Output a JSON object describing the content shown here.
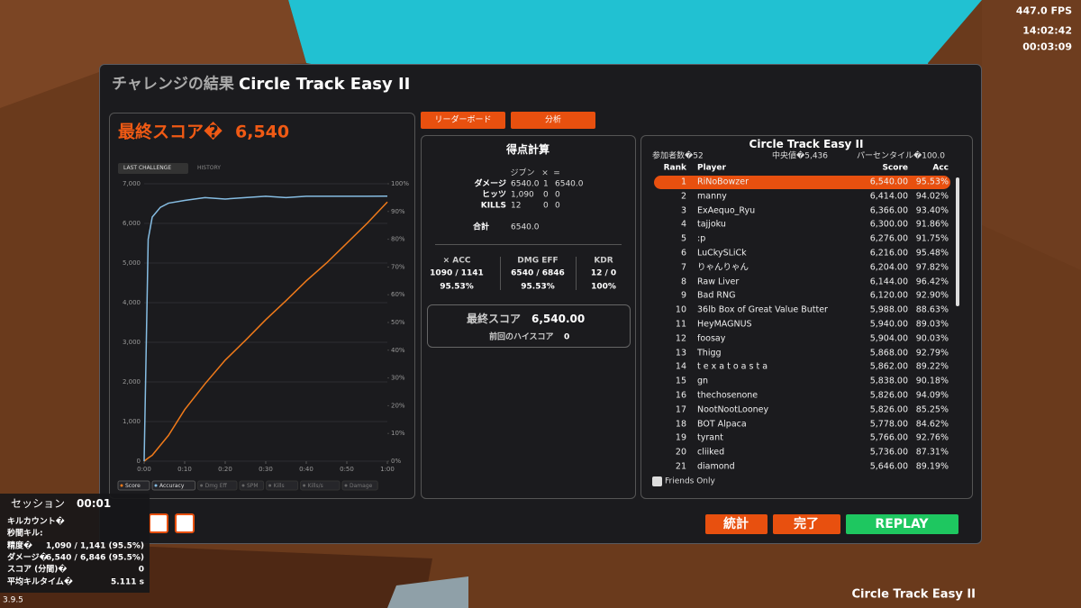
{
  "hud": {
    "fps": "447.0 FPS",
    "clock": "14:02:42",
    "timer": "00:03:09"
  },
  "window": {
    "title_jp": "チャレンジの結果",
    "title": "Circle Track Easy II"
  },
  "final_score": {
    "label": "最終スコア�",
    "value": "6,540"
  },
  "tabs": [
    "LAST CHALLENGE",
    "HISTORY"
  ],
  "chart_data": {
    "type": "line",
    "x": [
      0,
      1,
      2,
      4,
      6,
      10,
      15,
      20,
      25,
      30,
      35,
      40,
      45,
      50,
      55,
      60
    ],
    "xlim": [
      0,
      60
    ],
    "xticks": [
      {
        "value": 0,
        "label": "0:00"
      },
      {
        "value": 10,
        "label": "0:10"
      },
      {
        "value": 20,
        "label": "0:20"
      },
      {
        "value": 30,
        "label": "0:30"
      },
      {
        "value": 40,
        "label": "0:40"
      },
      {
        "value": 50,
        "label": "0:50"
      },
      {
        "value": 60,
        "label": "1:00"
      }
    ],
    "ylim": [
      0,
      7000
    ],
    "yticks": [
      0,
      {
        "value": 1000,
        "label": "1,000"
      },
      {
        "value": 2000,
        "label": "2,000"
      },
      {
        "value": 3000,
        "label": "3,000"
      },
      {
        "value": 4000,
        "label": "4,000"
      },
      {
        "value": 5000,
        "label": "5,000"
      },
      {
        "value": 6000,
        "label": "6,000"
      },
      {
        "value": 7000,
        "label": "7,000"
      }
    ],
    "y2lim": [
      0,
      100
    ],
    "y2ticks": [
      {
        "value": 0,
        "label": "0%"
      },
      {
        "value": 10,
        "label": "10%"
      },
      {
        "value": 20,
        "label": "20%"
      },
      {
        "value": 30,
        "label": "30%"
      },
      {
        "value": 40,
        "label": "40%"
      },
      {
        "value": 50,
        "label": "50%"
      },
      {
        "value": 60,
        "label": "60%"
      },
      {
        "value": 70,
        "label": "70%"
      },
      {
        "value": 80,
        "label": "80%"
      },
      {
        "value": 90,
        "label": "90%"
      },
      {
        "value": 100,
        "label": "100%"
      }
    ],
    "series": [
      {
        "name": "Score",
        "color": "#f07a1a",
        "values": [
          0,
          80,
          150,
          400,
          650,
          1300,
          1950,
          2550,
          3050,
          3570,
          4050,
          4550,
          5000,
          5500,
          6000,
          6540
        ]
      },
      {
        "name": "Accuracy",
        "color": "#86bde3",
        "axis": "y2",
        "values": [
          0,
          80,
          88,
          91.5,
          93,
          94,
          95,
          94.5,
          95,
          95.5,
          95,
          95.5,
          95.5,
          95.5,
          95.5,
          95.53
        ]
      }
    ],
    "legend_inactive": [
      "Dmg Eff",
      "SPM",
      "Kills",
      "Kills/s",
      "Damage"
    ],
    "grid": true
  },
  "buttons": {
    "leaderboard": "リーダーボード",
    "analysis": "分析",
    "stats": "統計",
    "done": "完了",
    "replay": "REPLAY"
  },
  "score_calc": {
    "title": "得点計算",
    "header": [
      "ジブン",
      "×",
      "="
    ],
    "rows": [
      [
        "ダメージ",
        "6540.0",
        "1",
        "6540.0"
      ],
      [
        "ヒッツ",
        "1,090",
        "0",
        "0"
      ],
      [
        "KILLS",
        "12",
        "0",
        "0"
      ]
    ],
    "total": [
      "合計",
      "6540.0"
    ],
    "stats": [
      [
        "× ACC",
        "1090 / 1141",
        "95.53%"
      ],
      [
        "DMG EFF",
        "6540 / 6846",
        "95.53%"
      ],
      [
        "KDR",
        "12 / 0",
        "100%"
      ]
    ],
    "final_label": "最終スコア",
    "final_value": "6,540.00",
    "prev_label": "前回のハイスコア",
    "prev_value": "0"
  },
  "leaderboard": {
    "title": "Circle Track Easy II",
    "participants": "参加者数�52",
    "median": "中央値�5,436",
    "percentile": "パーセンタイル�100.0",
    "columns": [
      "Rank",
      "Player",
      "Score",
      "Acc"
    ],
    "rows": [
      [
        "1",
        "RiNoBowzer",
        "6,540.00",
        "95.53%"
      ],
      [
        "2",
        "manny",
        "6,414.00",
        "94.02%"
      ],
      [
        "3",
        "ExAequo_Ryu",
        "6,366.00",
        "93.40%"
      ],
      [
        "4",
        "tajjoku",
        "6,300.00",
        "91.86%"
      ],
      [
        "5",
        ":p",
        "6,276.00",
        "91.75%"
      ],
      [
        "6",
        "LuCkySLiCk",
        "6,216.00",
        "95.48%"
      ],
      [
        "7",
        "りゃんりゃん",
        "6,204.00",
        "97.82%"
      ],
      [
        "8",
        "Raw Liver",
        "6,144.00",
        "96.42%"
      ],
      [
        "9",
        "Bad RNG",
        "6,120.00",
        "92.90%"
      ],
      [
        "10",
        "36lb Box of Great Value Butter",
        "5,988.00",
        "88.63%"
      ],
      [
        "11",
        "HeyMAGNUS",
        "5,940.00",
        "89.03%"
      ],
      [
        "12",
        "foosay",
        "5,904.00",
        "90.03%"
      ],
      [
        "13",
        "Thigg",
        "5,868.00",
        "92.79%"
      ],
      [
        "14",
        "t e x a t o a s t a",
        "5,862.00",
        "89.22%"
      ],
      [
        "15",
        "gn",
        "5,838.00",
        "90.18%"
      ],
      [
        "16",
        "thechosenone",
        "5,826.00",
        "94.09%"
      ],
      [
        "17",
        "NootNootLooney",
        "5,826.00",
        "85.25%"
      ],
      [
        "18",
        "BOT Alpaca",
        "5,778.00",
        "84.62%"
      ],
      [
        "19",
        "tyrant",
        "5,766.00",
        "92.76%"
      ],
      [
        "20",
        "cliiked",
        "5,736.00",
        "87.31%"
      ],
      [
        "21",
        "diamond",
        "5,646.00",
        "89.19%"
      ]
    ],
    "friends_only": "Friends Only"
  },
  "session": {
    "title": "セッション",
    "time": "00:01",
    "rows": [
      [
        "キルカウント�"
      ],
      [
        "秒間キル:"
      ],
      [
        "精度�",
        "1,090 / 1,141 (95.5%)"
      ],
      [
        "ダメージ�",
        "6,540 / 6,846 (95.5%)"
      ],
      [
        "スコア (分間)�",
        "0"
      ],
      [
        "平均キルタイム�",
        "5.111 s"
      ]
    ]
  },
  "version": "3.9.5",
  "footer_map": "Circle Track Easy II"
}
